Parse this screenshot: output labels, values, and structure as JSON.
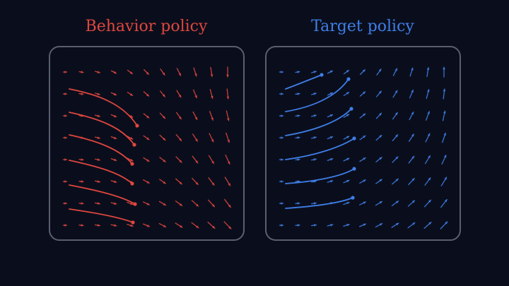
{
  "panels": [
    {
      "id": "behavior",
      "title": "Behavior policy",
      "color": "#e0463f",
      "field": "turning_down_right"
    },
    {
      "id": "target",
      "title": "Target policy",
      "color": "#3f7ee8",
      "field": "turning_up_right"
    }
  ],
  "colors": {
    "background": "#0a0e1c",
    "frame": "#5a5f6e"
  }
}
